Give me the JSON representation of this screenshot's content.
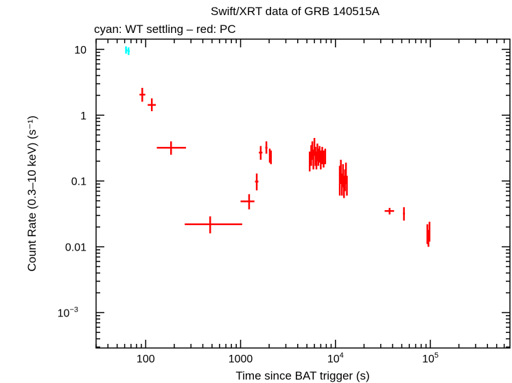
{
  "chart_data": {
    "type": "scatter",
    "title": "Swift/XRT data of GRB 140515A",
    "subtitle": "cyan: WT settling – red: PC",
    "xlabel": "Time since BAT trigger (s)",
    "ylabel": "Count Rate (0.3–10 keV) (s⁻¹)",
    "x_scale": "log",
    "y_scale": "log",
    "xlim": [
      30,
      690000
    ],
    "ylim": [
      0.00029,
      14.3
    ],
    "x_ticks": [
      {
        "v": 100,
        "label": "100"
      },
      {
        "v": 1000,
        "label": "1000"
      },
      {
        "v": 10000,
        "label": "10",
        "exp": "4"
      },
      {
        "v": 100000,
        "label": "10",
        "exp": "5"
      }
    ],
    "y_ticks": [
      {
        "v": 10,
        "label": "10"
      },
      {
        "v": 1,
        "label": "1"
      },
      {
        "v": 0.1,
        "label": "0.1"
      },
      {
        "v": 0.01,
        "label": "0.01"
      },
      {
        "v": 0.001,
        "label": "10",
        "exp": "−3"
      }
    ],
    "point_format": [
      "x",
      "x_lo",
      "x_hi",
      "y",
      "y_lo",
      "y_hi"
    ],
    "series": [
      {
        "color": "#00ffff",
        "points": [
          [
            62,
            61,
            64,
            9.8,
            8.6,
            11.1
          ],
          [
            66,
            64,
            68,
            9.4,
            8.2,
            10.7
          ]
        ]
      },
      {
        "color": "#ff0000",
        "points": [
          [
            92,
            86,
            99,
            2.05,
            1.6,
            2.6
          ],
          [
            116,
            105,
            128,
            1.43,
            1.15,
            1.8
          ],
          [
            185,
            131,
            266,
            0.32,
            0.25,
            0.4
          ],
          [
            478,
            258,
            1040,
            0.022,
            0.016,
            0.029
          ],
          [
            1230,
            1000,
            1400,
            0.049,
            0.037,
            0.063
          ],
          [
            1480,
            1420,
            1540,
            0.098,
            0.072,
            0.13
          ],
          [
            1630,
            1560,
            1700,
            0.27,
            0.21,
            0.34
          ],
          [
            1870,
            1820,
            1920,
            0.32,
            0.26,
            0.4
          ],
          [
            2030,
            2000,
            2060,
            0.25,
            0.19,
            0.31
          ],
          [
            2090,
            2060,
            2120,
            0.23,
            0.18,
            0.29
          ],
          [
            5350,
            5250,
            5450,
            0.2,
            0.14,
            0.28
          ],
          [
            5550,
            5450,
            5650,
            0.25,
            0.17,
            0.35
          ],
          [
            5700,
            5650,
            5750,
            0.3,
            0.21,
            0.4
          ],
          [
            5850,
            5800,
            5900,
            0.22,
            0.15,
            0.3
          ],
          [
            6000,
            5950,
            6050,
            0.33,
            0.24,
            0.45
          ],
          [
            6150,
            6100,
            6200,
            0.24,
            0.17,
            0.33
          ],
          [
            6300,
            6250,
            6350,
            0.2,
            0.15,
            0.28
          ],
          [
            6450,
            6400,
            6500,
            0.28,
            0.2,
            0.37
          ],
          [
            6600,
            6550,
            6650,
            0.23,
            0.17,
            0.31
          ],
          [
            6800,
            6700,
            6900,
            0.26,
            0.19,
            0.34
          ],
          [
            7000,
            6900,
            7100,
            0.21,
            0.15,
            0.29
          ],
          [
            7250,
            7150,
            7350,
            0.25,
            0.18,
            0.33
          ],
          [
            7500,
            7400,
            7600,
            0.22,
            0.16,
            0.29
          ],
          [
            7800,
            7700,
            7900,
            0.24,
            0.18,
            0.31
          ],
          [
            11100,
            11000,
            11200,
            0.1,
            0.06,
            0.17
          ],
          [
            11400,
            11300,
            11500,
            0.14,
            0.09,
            0.21
          ],
          [
            11700,
            11600,
            11800,
            0.09,
            0.06,
            0.13
          ],
          [
            12000,
            11900,
            12100,
            0.12,
            0.08,
            0.18
          ],
          [
            12300,
            12200,
            12400,
            0.08,
            0.055,
            0.12
          ],
          [
            12600,
            12500,
            12700,
            0.1,
            0.07,
            0.15
          ],
          [
            12900,
            12800,
            13000,
            0.13,
            0.09,
            0.19
          ],
          [
            13200,
            13100,
            13300,
            0.085,
            0.06,
            0.12
          ],
          [
            37200,
            33000,
            41500,
            0.035,
            0.031,
            0.039
          ],
          [
            52700,
            51500,
            54000,
            0.032,
            0.025,
            0.04
          ],
          [
            93000,
            92000,
            94000,
            0.016,
            0.011,
            0.022
          ],
          [
            95500,
            94500,
            96500,
            0.013,
            0.01,
            0.018
          ],
          [
            98000,
            97000,
            99000,
            0.017,
            0.012,
            0.024
          ]
        ]
      }
    ]
  }
}
